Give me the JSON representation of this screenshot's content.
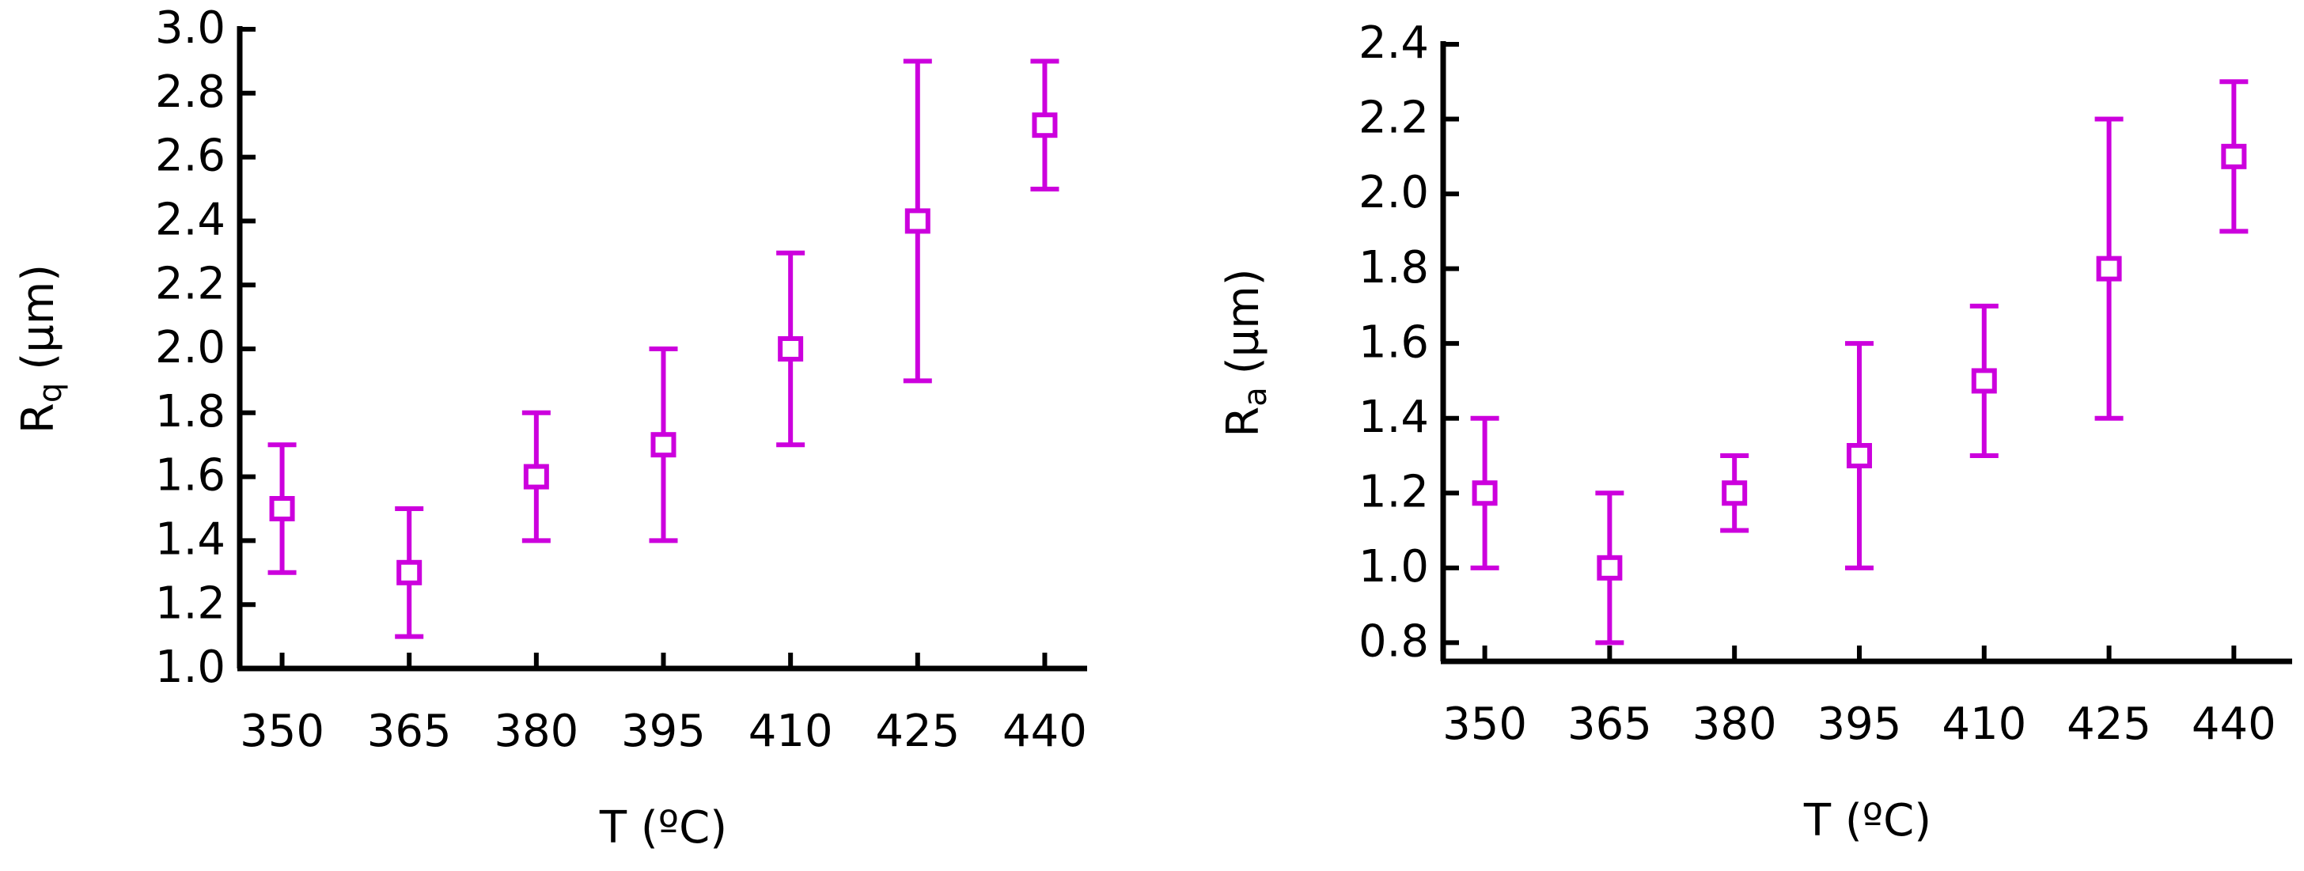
{
  "chart_data": [
    {
      "type": "errorbar",
      "color": "#cc00dd",
      "xlabel": "T (ºC)",
      "ylabel": {
        "text": "R",
        "subscript": "q",
        "unit": "(µm)"
      },
      "x": [
        350,
        365,
        380,
        395,
        410,
        425,
        440
      ],
      "values": [
        1.5,
        1.3,
        1.6,
        1.7,
        2.0,
        2.4,
        2.7
      ],
      "errors": [
        0.2,
        0.2,
        0.2,
        0.3,
        0.3,
        0.5,
        0.2
      ],
      "xlim": [
        345,
        445
      ],
      "xticks": [
        350,
        365,
        380,
        395,
        410,
        425,
        440
      ],
      "ylim": [
        1.0,
        3.0
      ],
      "yticks": [
        {
          "value": 1.0,
          "label": "1.0"
        },
        {
          "value": 1.2,
          "label": "1.2"
        },
        {
          "value": 1.4,
          "label": "1.4"
        },
        {
          "value": 1.6,
          "label": "1.6"
        },
        {
          "value": 1.8,
          "label": "1.8"
        },
        {
          "value": 2.0,
          "label": "2.0"
        },
        {
          "value": 2.2,
          "label": "2.2"
        },
        {
          "value": 2.4,
          "label": "2.4"
        },
        {
          "value": 2.6,
          "label": "2.6"
        },
        {
          "value": 2.8,
          "label": "2.8"
        },
        {
          "value": 3.0,
          "label": "3.0"
        }
      ]
    },
    {
      "type": "errorbar",
      "color": "#cc00dd",
      "xlabel": "T (ºC)",
      "ylabel": {
        "text": "R",
        "subscript": "a",
        "unit": "(µm)"
      },
      "x": [
        350,
        365,
        380,
        395,
        410,
        425,
        440
      ],
      "values": [
        1.2,
        1.0,
        1.2,
        1.3,
        1.5,
        1.8,
        2.1
      ],
      "errors": [
        0.2,
        0.2,
        0.1,
        0.3,
        0.2,
        0.4,
        0.2
      ],
      "xlim": [
        345,
        447
      ],
      "xticks": [
        350,
        365,
        380,
        395,
        410,
        425,
        440
      ],
      "ylim": [
        0.75,
        2.4
      ],
      "yticks": [
        {
          "value": 0.8,
          "label": "0.8"
        },
        {
          "value": 1.0,
          "label": "1.0"
        },
        {
          "value": 1.2,
          "label": "1.2"
        },
        {
          "value": 1.4,
          "label": "1.4"
        },
        {
          "value": 1.6,
          "label": "1.6"
        },
        {
          "value": 1.8,
          "label": "1.8"
        },
        {
          "value": 2.0,
          "label": "2.0"
        },
        {
          "value": 2.2,
          "label": "2.2"
        },
        {
          "value": 2.4,
          "label": "2.4"
        }
      ]
    }
  ]
}
